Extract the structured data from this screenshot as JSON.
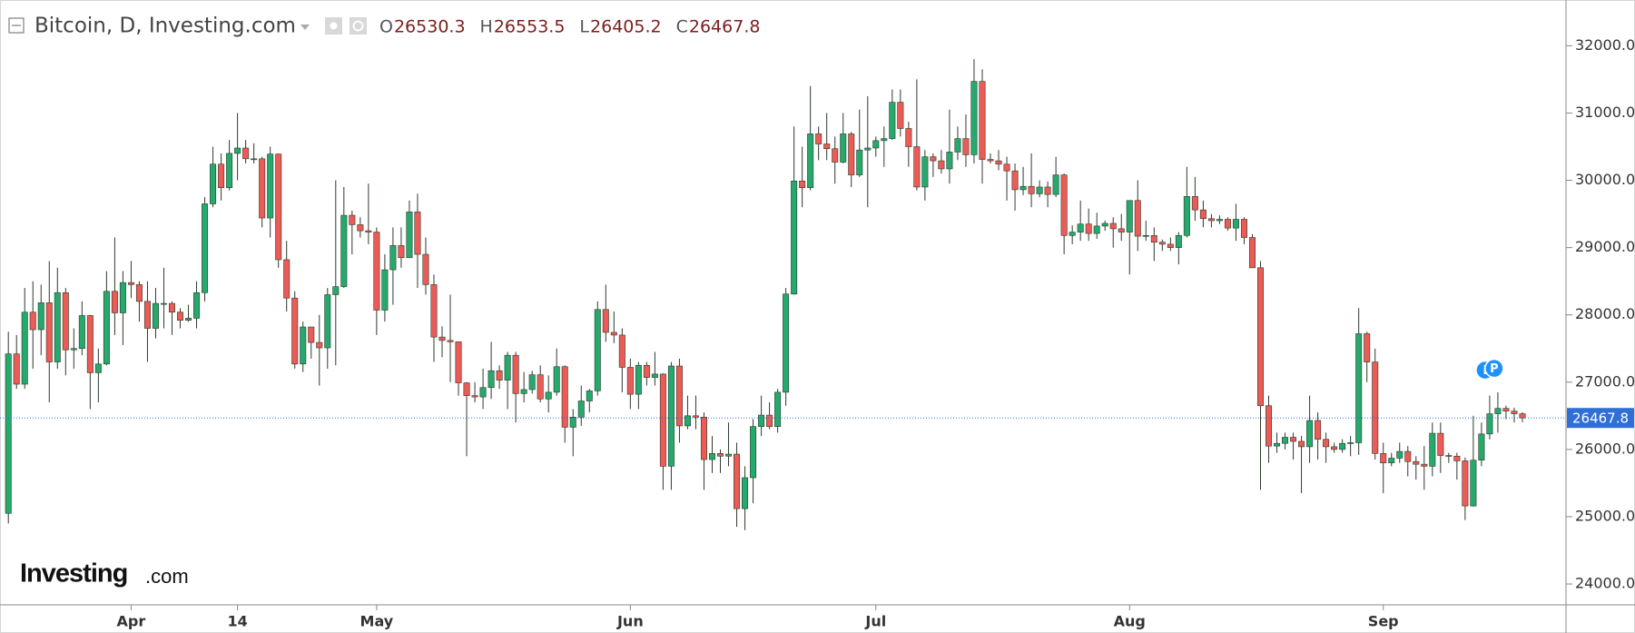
{
  "chart_data": {
    "type": "candlestick",
    "title": "Bitcoin, D, Investing.com",
    "ohlc_labels": [
      "O",
      "H",
      "L",
      "C"
    ],
    "logo": {
      "brand": "Investing",
      "suffix": ".com"
    },
    "event_markers": [
      "i",
      "P"
    ],
    "up_color": "#26a96c",
    "down_color": "#ec5b56",
    "price_line_color": "#2f6fd6",
    "grid": false,
    "ylim": [
      23690,
      32680
    ],
    "yticks": [
      {
        "value": 24000,
        "label": "24000.0"
      },
      {
        "value": 25000,
        "label": "25000.0"
      },
      {
        "value": 26000,
        "label": "26000.0"
      },
      {
        "value": 27000,
        "label": "27000.0"
      },
      {
        "value": 28000,
        "label": "28000.0"
      },
      {
        "value": 29000,
        "label": "29000.0"
      },
      {
        "value": 30000,
        "label": "30000.0"
      },
      {
        "value": 31000,
        "label": "31000.0"
      },
      {
        "value": 32000,
        "label": "32000.0"
      }
    ],
    "categories": [
      null,
      null,
      null,
      null,
      null,
      null,
      null,
      null,
      null,
      null,
      null,
      null,
      null,
      null,
      null,
      "Apr",
      null,
      null,
      null,
      null,
      null,
      null,
      null,
      null,
      null,
      null,
      null,
      null,
      "14",
      null,
      null,
      null,
      null,
      null,
      null,
      null,
      null,
      null,
      null,
      null,
      null,
      null,
      null,
      null,
      null,
      "May",
      null,
      null,
      null,
      null,
      null,
      null,
      null,
      null,
      null,
      null,
      null,
      null,
      null,
      null,
      null,
      null,
      null,
      null,
      null,
      null,
      null,
      null,
      null,
      null,
      null,
      null,
      null,
      null,
      null,
      null,
      "Jun",
      null,
      null,
      null,
      null,
      null,
      null,
      null,
      null,
      null,
      null,
      null,
      null,
      null,
      null,
      null,
      null,
      null,
      null,
      null,
      null,
      null,
      null,
      null,
      null,
      null,
      null,
      null,
      null,
      null,
      "Jul",
      null,
      null,
      null,
      null,
      null,
      null,
      null,
      null,
      null,
      null,
      null,
      null,
      null,
      null,
      null,
      null,
      null,
      null,
      null,
      null,
      null,
      null,
      null,
      null,
      null,
      null,
      null,
      null,
      null,
      null,
      "Aug",
      null,
      null,
      null,
      null,
      null,
      null,
      null,
      null,
      null,
      null,
      null,
      null,
      null,
      null,
      null,
      null,
      null,
      null,
      null,
      null,
      null,
      null,
      null,
      null,
      null,
      null,
      null,
      null,
      null,
      null,
      "Sep",
      null,
      null,
      null,
      null,
      null,
      null,
      null,
      null,
      null,
      null,
      null,
      null,
      null,
      null,
      null,
      null,
      null
    ],
    "open": [
      25050,
      27420,
      26970,
      28040,
      27780,
      28180,
      27300,
      28330,
      27480,
      27500,
      27990,
      27140,
      27270,
      28350,
      28030,
      28480,
      28450,
      28200,
      27800,
      28170,
      28170,
      28040,
      27920,
      27950,
      28330,
      29650,
      30240,
      29890,
      30400,
      30480,
      30320,
      30320,
      29440,
      30390,
      28820,
      28250,
      27270,
      27820,
      27590,
      27510,
      28300,
      28420,
      29480,
      29340,
      29250,
      29230,
      28070,
      28670,
      29030,
      28850,
      29530,
      28900,
      28450,
      27670,
      27620,
      27600,
      26990,
      26800,
      26780,
      26920,
      27170,
      27030,
      27400,
      26830,
      26890,
      27110,
      26750,
      26850,
      27230,
      26330,
      26480,
      26720,
      26870,
      28080,
      27740,
      27700,
      27220,
      26820,
      27250,
      27070,
      27120,
      25750,
      27240,
      26350,
      26500,
      26480,
      25850,
      25940,
      25900,
      25930,
      25120,
      25580,
      26340,
      26510,
      26340,
      26850,
      28310,
      29990,
      29890,
      30690,
      30540,
      30470,
      30270,
      30690,
      30080,
      30450,
      30480,
      30590,
      30620,
      31160,
      30770,
      30500,
      29900,
      30350,
      30290,
      30170,
      30420,
      30620,
      30380,
      31470,
      30310,
      30290,
      30240,
      30140,
      29860,
      29910,
      29800,
      29900,
      29790,
      30080,
      29180,
      29230,
      29350,
      29210,
      29320,
      29360,
      29280,
      29230,
      29700,
      29170,
      29180,
      29080,
      29050,
      29000,
      29180,
      29760,
      29560,
      29430,
      29400,
      29420,
      29290,
      29420,
      29150,
      28700,
      26650,
      26050,
      26090,
      26180,
      26120,
      26040,
      26430,
      26150,
      26040,
      26000,
      26090,
      26100,
      27720,
      27300,
      25940,
      25800,
      25870,
      25970,
      25820,
      25780,
      25750,
      26240,
      25910,
      25900,
      25830,
      25160,
      25840,
      26230,
      26530,
      26610,
      26570,
      26530.3
    ],
    "high": [
      27750,
      27700,
      28400,
      28500,
      28450,
      28800,
      28700,
      28400,
      27800,
      28200,
      28000,
      27500,
      28650,
      29150,
      28650,
      28800,
      28500,
      28500,
      28400,
      28700,
      28200,
      28100,
      28150,
      28500,
      29750,
      30500,
      30400,
      30600,
      31000,
      30600,
      30550,
      30350,
      30500,
      30400,
      29100,
      28350,
      27900,
      27820,
      28000,
      28400,
      30000,
      29900,
      29550,
      29450,
      29950,
      29300,
      28900,
      29300,
      29300,
      29700,
      29800,
      29150,
      28600,
      27830,
      28300,
      27600,
      27000,
      27000,
      27200,
      27600,
      27250,
      27450,
      27450,
      27150,
      27170,
      27250,
      27100,
      27500,
      27250,
      26600,
      26950,
      26900,
      28200,
      28450,
      28050,
      27800,
      27350,
      27300,
      27300,
      27450,
      27130,
      27300,
      27350,
      26800,
      26800,
      26550,
      26200,
      26000,
      26400,
      26100,
      25750,
      26450,
      26800,
      26700,
      26900,
      28400,
      30800,
      30500,
      31400,
      30800,
      31000,
      30650,
      31000,
      30720,
      31050,
      31250,
      30650,
      30800,
      31350,
      31350,
      30870,
      31500,
      30450,
      30400,
      30450,
      31050,
      30800,
      30980,
      31800,
      31650,
      30400,
      30450,
      30350,
      30250,
      30200,
      30400,
      30000,
      29980,
      30350,
      30100,
      29330,
      29700,
      29580,
      29520,
      29400,
      29450,
      29500,
      29700,
      30000,
      29400,
      29300,
      29120,
      29150,
      29230,
      30200,
      30050,
      29700,
      29500,
      29480,
      29450,
      29650,
      29450,
      29200,
      28800,
      26800,
      26250,
      26250,
      26250,
      26200,
      26800,
      26550,
      26250,
      26100,
      26150,
      26200,
      28100,
      27750,
      27500,
      26100,
      25950,
      26100,
      26050,
      25900,
      26050,
      26400,
      26400,
      25950,
      25950,
      25880,
      26500,
      26400,
      26800,
      26850,
      26650,
      26620,
      26553.5
    ],
    "low": [
      24900,
      26900,
      26900,
      27200,
      27400,
      26700,
      27200,
      27100,
      27200,
      27400,
      26600,
      26700,
      27250,
      27700,
      27550,
      28250,
      27900,
      27300,
      27650,
      27800,
      27700,
      27800,
      27900,
      27800,
      28200,
      29600,
      29700,
      29850,
      30000,
      30250,
      30250,
      29300,
      29150,
      28700,
      28050,
      27200,
      27150,
      27350,
      26950,
      27200,
      27250,
      28400,
      28900,
      29150,
      29050,
      27700,
      27900,
      28150,
      28700,
      28850,
      28400,
      28300,
      27300,
      27370,
      27000,
      26800,
      25900,
      26700,
      26600,
      26750,
      26900,
      26600,
      26400,
      26700,
      26830,
      26700,
      26550,
      26800,
      26100,
      25900,
      26350,
      26550,
      26800,
      27600,
      27580,
      26850,
      26600,
      26600,
      26950,
      26950,
      25400,
      25400,
      26100,
      26300,
      26300,
      25400,
      25650,
      25650,
      25750,
      24850,
      24800,
      25200,
      26200,
      26300,
      26250,
      26650,
      28300,
      29600,
      29850,
      30300,
      30300,
      29950,
      30250,
      29900,
      30050,
      29600,
      30350,
      30200,
      30600,
      30650,
      30200,
      29850,
      29700,
      30050,
      30100,
      29950,
      30300,
      30200,
      30250,
      29950,
      30250,
      30150,
      29700,
      29550,
      29780,
      29600,
      29750,
      29600,
      29750,
      28900,
      29050,
      29100,
      29100,
      29130,
      29250,
      29000,
      29100,
      28600,
      28950,
      29100,
      28800,
      28950,
      28950,
      28750,
      29150,
      29400,
      29300,
      29300,
      29350,
      29250,
      29100,
      29050,
      28700,
      25400,
      25800,
      25950,
      26000,
      25850,
      25350,
      25800,
      25850,
      25800,
      25950,
      25950,
      25900,
      25920,
      27000,
      25850,
      25350,
      25750,
      25800,
      25600,
      25550,
      25400,
      25600,
      25650,
      25800,
      25550,
      24950,
      25150,
      25750,
      26150,
      26250,
      26450,
      26400,
      26405.2
    ],
    "close": [
      27420,
      26970,
      28040,
      27780,
      28180,
      27300,
      28330,
      27480,
      27500,
      27990,
      27140,
      27270,
      28350,
      28030,
      28480,
      28450,
      28200,
      27800,
      28170,
      28170,
      28040,
      27920,
      27950,
      28330,
      29650,
      30240,
      29890,
      30400,
      30480,
      30320,
      30320,
      29440,
      30390,
      28820,
      28250,
      27270,
      27820,
      27590,
      27510,
      28300,
      28420,
      29480,
      29340,
      29250,
      29230,
      28070,
      28670,
      29030,
      28850,
      29530,
      28900,
      28450,
      27670,
      27620,
      27600,
      26990,
      26800,
      26780,
      26920,
      27170,
      27030,
      27400,
      26830,
      26890,
      27110,
      26750,
      26850,
      27230,
      26330,
      26480,
      26720,
      26870,
      28080,
      27740,
      27700,
      27220,
      26820,
      27250,
      27070,
      27120,
      25750,
      27240,
      26350,
      26500,
      26480,
      25850,
      25940,
      25900,
      25930,
      25120,
      25580,
      26340,
      26510,
      26340,
      26850,
      28310,
      29990,
      29890,
      30690,
      30540,
      30470,
      30270,
      30690,
      30080,
      30450,
      30480,
      30590,
      30620,
      31160,
      30770,
      30500,
      29900,
      30350,
      30290,
      30170,
      30420,
      30620,
      30380,
      31470,
      30310,
      30290,
      30240,
      30140,
      29860,
      29910,
      29800,
      29900,
      29790,
      30080,
      29180,
      29230,
      29350,
      29210,
      29320,
      29360,
      29280,
      29230,
      29700,
      29170,
      29180,
      29080,
      29050,
      29000,
      29180,
      29760,
      29560,
      29430,
      29400,
      29420,
      29290,
      29420,
      29150,
      28700,
      26650,
      26050,
      26090,
      26180,
      26120,
      26040,
      26430,
      26150,
      26040,
      26000,
      26090,
      26100,
      27720,
      27300,
      25940,
      25800,
      25870,
      25970,
      25820,
      25780,
      25750,
      26240,
      25910,
      25900,
      25830,
      25160,
      25840,
      26230,
      26530,
      26610,
      26570,
      26530,
      26467.8
    ]
  }
}
